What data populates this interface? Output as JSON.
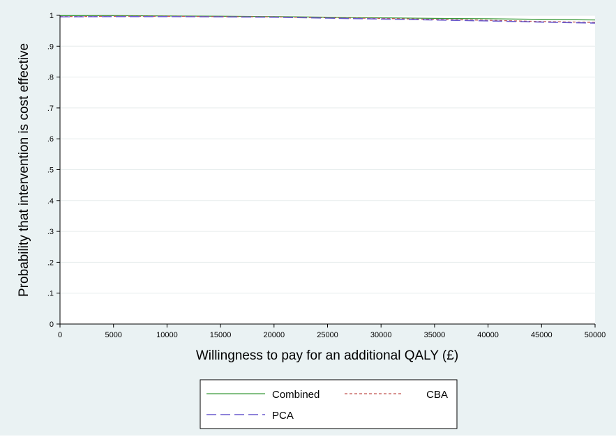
{
  "chart_data": {
    "type": "line",
    "xlabel": "Willingness to pay for an additional QALY (£)",
    "ylabel": "Probability that intervention is cost  effective",
    "xlim": [
      0,
      50000
    ],
    "ylim": [
      0,
      1
    ],
    "x_ticks": [
      0,
      5000,
      10000,
      15000,
      20000,
      25000,
      30000,
      35000,
      40000,
      45000,
      50000
    ],
    "x_tick_labels": [
      "0",
      "5000",
      "10000",
      "15000",
      "20000",
      "25000",
      "30000",
      "35000",
      "40000",
      "45000",
      "50000"
    ],
    "y_ticks": [
      0,
      0.1,
      0.2,
      0.3,
      0.4,
      0.5,
      0.6,
      0.7,
      0.8,
      0.9,
      1
    ],
    "y_tick_labels": [
      "0",
      ".1",
      ".2",
      ".3",
      ".4",
      ".5",
      ".6",
      ".7",
      ".8",
      ".9",
      "1"
    ],
    "grid": true,
    "legend_position": "bottom",
    "series": [
      {
        "name": "Combined",
        "color": "#3a9a3a",
        "style": "solid",
        "x": [
          0,
          5000,
          10000,
          15000,
          20000,
          25000,
          30000,
          35000,
          40000,
          45000,
          50000
        ],
        "y": [
          0.999,
          0.999,
          0.998,
          0.997,
          0.996,
          0.994,
          0.992,
          0.99,
          0.989,
          0.987,
          0.985
        ]
      },
      {
        "name": "CBA",
        "color": "#c0504d",
        "style": "dotted",
        "x": [
          0,
          5000,
          10000,
          15000,
          20000,
          25000,
          30000,
          35000,
          40000,
          45000,
          50000
        ],
        "y": [
          0.996,
          0.997,
          0.997,
          0.996,
          0.995,
          0.992,
          0.99,
          0.987,
          0.984,
          0.98,
          0.977
        ]
      },
      {
        "name": "PCA",
        "color": "#6a5acd",
        "style": "dashed",
        "x": [
          0,
          5000,
          10000,
          15000,
          20000,
          25000,
          30000,
          35000,
          40000,
          45000,
          50000
        ],
        "y": [
          0.995,
          0.996,
          0.996,
          0.995,
          0.994,
          0.991,
          0.988,
          0.985,
          0.982,
          0.978,
          0.975
        ]
      }
    ]
  }
}
